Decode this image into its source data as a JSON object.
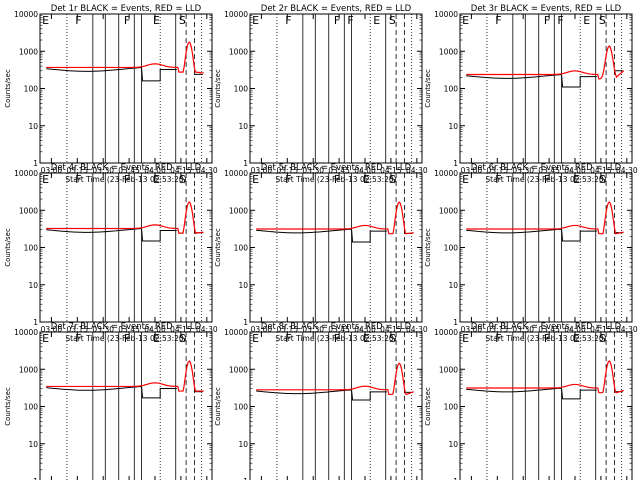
{
  "figure": {
    "panels": [
      {
        "title": "Det 1r BLACK = Events, RED = LLD",
        "events_level": 340,
        "events_dip_level": 160,
        "events_has_dip": true,
        "red_bump_peak": 1600,
        "red_end": 260,
        "black_end": 240,
        "markers": [
          "E",
          "F",
          "F",
          "E",
          "S"
        ]
      },
      {
        "title": "Det 2r BLACK = Events, RED = LLD",
        "events_level": 0,
        "events_dip_level": 0,
        "events_has_dip": false,
        "red_bump_peak": 0,
        "red_end": 0,
        "black_end": 0,
        "markers": [
          "E",
          "F",
          "F",
          "F",
          "E",
          "S"
        ]
      },
      {
        "title": "Det 3r BLACK = Events, RED = LLD",
        "events_level": 220,
        "events_dip_level": 110,
        "events_has_dip": true,
        "red_bump_peak": 1200,
        "red_end": 300,
        "black_end": 300,
        "markers": [
          "E",
          "F",
          "F",
          "F",
          "E",
          "S"
        ]
      },
      {
        "title": "Det 4r BLACK = Events, RED = LLD",
        "events_level": 300,
        "events_dip_level": 150,
        "events_has_dip": true,
        "red_bump_peak": 1500,
        "red_end": 260,
        "black_end": 250,
        "markers": [
          "E",
          "F",
          "F",
          "E",
          "S"
        ]
      },
      {
        "title": "Det 5r BLACK = Events, RED = LLD",
        "events_level": 290,
        "events_dip_level": 140,
        "events_has_dip": true,
        "red_bump_peak": 1500,
        "red_end": 250,
        "black_end": 240,
        "markers": [
          "E",
          "F",
          "F",
          "E",
          "S"
        ]
      },
      {
        "title": "Det 6r BLACK = Events, RED = LLD",
        "events_level": 290,
        "events_dip_level": 150,
        "events_has_dip": true,
        "red_bump_peak": 1500,
        "red_end": 260,
        "black_end": 250,
        "markers": [
          "E",
          "F",
          "F",
          "E",
          "S"
        ]
      },
      {
        "title": "Det 7r BLACK = Events, RED = LLD",
        "events_level": 320,
        "events_dip_level": 170,
        "events_has_dip": true,
        "red_bump_peak": 1500,
        "red_end": 260,
        "black_end": 250,
        "markers": [
          "E",
          "F",
          "F",
          "E",
          "S"
        ]
      },
      {
        "title": "Det 8r BLACK = Events, RED = LLD",
        "events_level": 260,
        "events_dip_level": 150,
        "events_has_dip": true,
        "red_bump_peak": 1300,
        "red_end": 250,
        "black_end": 240,
        "markers": [
          "E",
          "F",
          "F",
          "E",
          "S"
        ]
      },
      {
        "title": "Det 9r BLACK = Events, RED = LLD",
        "events_level": 290,
        "events_dip_level": 160,
        "events_has_dip": true,
        "red_bump_peak": 1500,
        "red_end": 270,
        "black_end": 250,
        "markers": [
          "E",
          "F",
          "F",
          "E",
          "S"
        ]
      }
    ]
  },
  "chart_data": {
    "type": "line",
    "ylabel": "Counts/sec",
    "xlabel": "Start Time (23-Feb-13 02:53:20)",
    "yscale": "log",
    "ylim": [
      1,
      10000
    ],
    "y_ticks": [
      "1",
      "10",
      "100",
      "1000",
      "10000"
    ],
    "x_ticks": [
      "03:00",
      "03:15",
      "03:30",
      "03:45",
      "04:00",
      "04:15",
      "04:30"
    ],
    "series_colors": {
      "events": "#000000",
      "lld": "#ff0000"
    },
    "legend": "none",
    "grid": false
  }
}
